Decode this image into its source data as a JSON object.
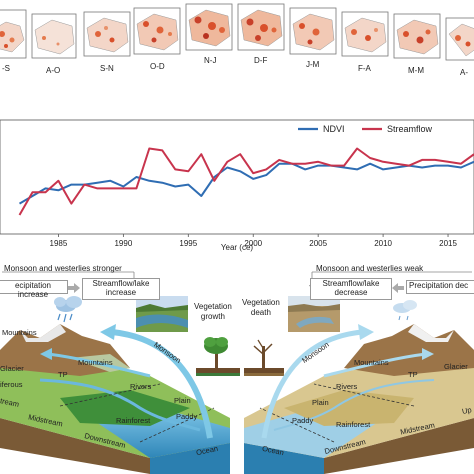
{
  "maps": {
    "labels": [
      "-S",
      "A-O",
      "S-N",
      "O-D",
      "N-J",
      "D-F",
      "J-M",
      "F-A",
      "M-M",
      "A-"
    ]
  },
  "chart_data": {
    "type": "line",
    "x": [
      1982,
      1983,
      1984,
      1985,
      1986,
      1987,
      1988,
      1989,
      1990,
      1991,
      1992,
      1993,
      1994,
      1995,
      1996,
      1997,
      1998,
      1999,
      2000,
      2001,
      2002,
      2003,
      2004,
      2005,
      2006,
      2007,
      2008,
      2009,
      2010,
      2011,
      2012,
      2013,
      2014,
      2015,
      2016,
      2017
    ],
    "series": [
      {
        "name": "NDVI",
        "color": "#2f6db3",
        "values": [
          -0.2,
          0.0,
          0.2,
          0.15,
          0.3,
          0.3,
          0.35,
          0.4,
          0.25,
          0.5,
          0.4,
          0.35,
          0.25,
          0.3,
          0.0,
          0.5,
          0.75,
          0.65,
          0.45,
          0.55,
          0.85,
          0.85,
          0.7,
          0.8,
          0.8,
          0.75,
          0.7,
          0.85,
          0.7,
          0.75,
          0.8,
          0.75,
          0.8,
          0.8,
          0.75,
          0.9
        ]
      },
      {
        "name": "Streamflow",
        "color": "#c8344d",
        "values": [
          -0.5,
          0.1,
          0.1,
          0.4,
          -0.2,
          0.3,
          0.2,
          0.2,
          0.2,
          0.2,
          1.25,
          1.2,
          0.7,
          0.65,
          1.1,
          0.4,
          0.9,
          1.1,
          0.6,
          0.7,
          0.95,
          0.85,
          0.85,
          0.9,
          0.8,
          0.8,
          1.25,
          1.0,
          0.9,
          0.85,
          0.8,
          0.95,
          0.95,
          0.9,
          0.85,
          1.1
        ]
      }
    ],
    "xlabel": "Year (ce)",
    "xticks": [
      "1985",
      "1990",
      "1995",
      "2000",
      "2005",
      "2010",
      "2015"
    ],
    "xlim": [
      1980.5,
      2017
    ],
    "ylim": [
      -1.0,
      2.0
    ],
    "legend": "top-right",
    "grid": false
  },
  "diagram": {
    "left_header": "Monsoon and westerlies stronger",
    "right_header": "Monsoon and westerlies weak",
    "precip_increase": "ecipitation increase",
    "streamflow_increase": "Streamflow/lake\nincrease",
    "streamflow_decrease": "Streamflow/lake\ndecrease",
    "precip_decrease": "Precipitation dec",
    "vegetation_growth": "Vegetation\ngrowth",
    "vegetation_death": "Vegetation\ndeath",
    "left_labels": {
      "mountains1": "Mountains",
      "glacier": "Glacier",
      "tp": "TP",
      "mountains2": "Mountains",
      "coniferous": "iferous",
      "monsoon": "Monsoon",
      "rivers": "Rivers",
      "plain": "Plain",
      "paddy": "Paddy",
      "rainforest": "Rainforest",
      "upstream": "tream",
      "midstream": "Midstream",
      "downstream": "Downstream",
      "ocean": "Ocean"
    },
    "right_labels": {
      "monsoon": "Monsoon",
      "mountains": "Mountains",
      "glacier": "Glacier",
      "tp": "TP",
      "rivers": "Rivers",
      "plain": "Plain",
      "paddy": "Paddy",
      "rainforest": "Rainforest",
      "ocean": "Ocean",
      "downstream": "Downstream",
      "midstream": "Midstream",
      "upstream": "Up"
    }
  }
}
